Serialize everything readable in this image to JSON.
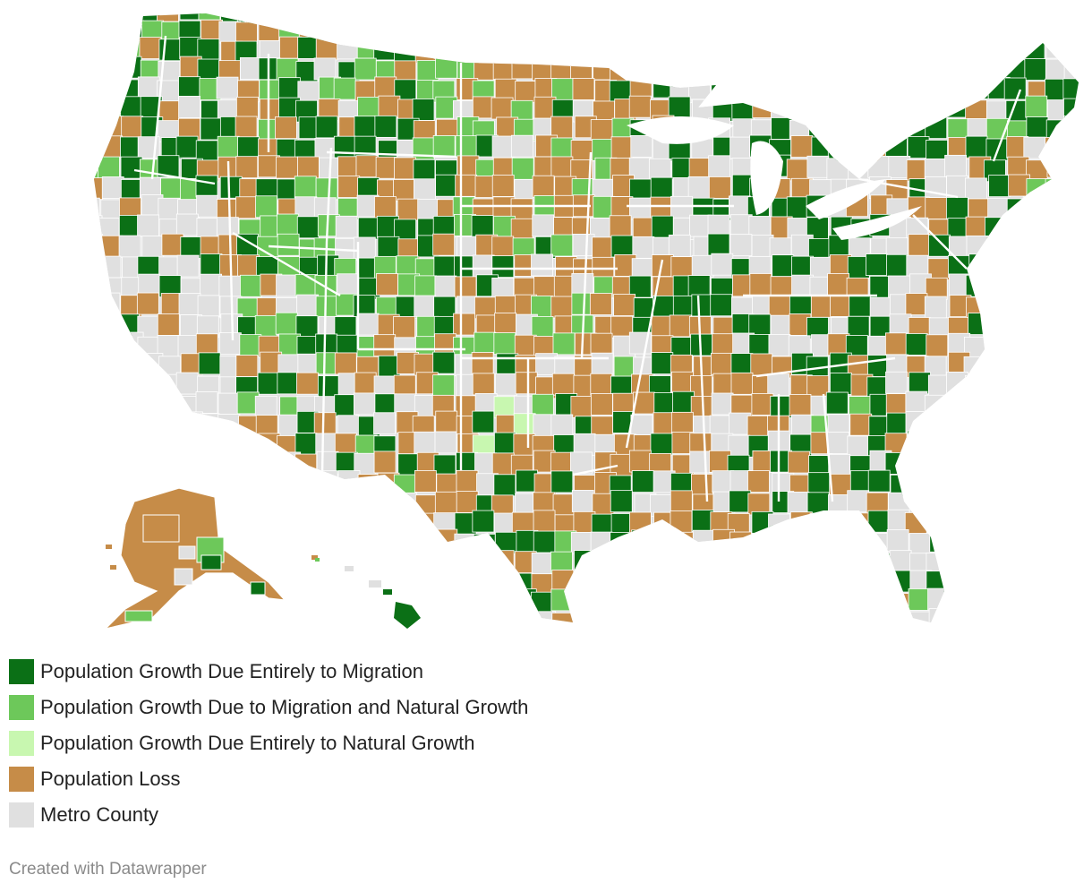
{
  "categories": {
    "migration_only": "#0b7016",
    "migration_and_natural": "#6dc85a",
    "natural_only": "#c8f7b0",
    "loss": "#c68c48",
    "metro": "#e0e0e0"
  },
  "legend": [
    {
      "key": "migration_only",
      "label": "Population Growth Due Entirely to Migration",
      "color": "#0b7016"
    },
    {
      "key": "migration_and_natural",
      "label": "Population Growth Due to Migration and Natural Growth",
      "color": "#6dc85a"
    },
    {
      "key": "natural_only",
      "label": "Population Growth Due Entirely to Natural Growth",
      "color": "#c8f7b0"
    },
    {
      "key": "loss",
      "label": "Population Loss",
      "color": "#c68c48"
    },
    {
      "key": "metro",
      "label": "Metro County",
      "color": "#e0e0e0"
    }
  ],
  "credit": "Created with Datawrapper"
}
